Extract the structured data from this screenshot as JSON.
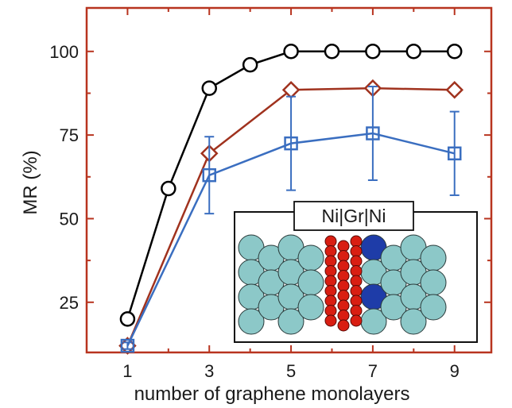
{
  "chart_data": {
    "type": "line",
    "xlabel": "number of graphene monolayers",
    "ylabel": "MR (%)",
    "xlim": [
      0.0,
      9.9
    ],
    "ylim": [
      10,
      113
    ],
    "x_ticks": [
      1,
      3,
      5,
      7,
      9
    ],
    "y_ticks": [
      25,
      50,
      75,
      100
    ],
    "grid": false,
    "series": [
      {
        "marker": "circle",
        "color": "#000000",
        "x": [
          1,
          2,
          3,
          4,
          5,
          6,
          7,
          8,
          9
        ],
        "y": [
          20,
          59,
          89,
          96,
          100,
          100,
          100,
          100,
          100
        ]
      },
      {
        "marker": "diamond",
        "color": "#a0321e",
        "x": [
          1,
          3,
          5,
          7,
          9
        ],
        "y": [
          12,
          69.5,
          88.5,
          89,
          88.5
        ]
      },
      {
        "marker": "square",
        "color": "#3a6ec0",
        "x": [
          1,
          3,
          5,
          7,
          9
        ],
        "y": [
          12,
          63,
          72.5,
          75.5,
          69.5
        ],
        "error": [
          1,
          11.5,
          14,
          14,
          12.5
        ]
      }
    ],
    "inset": {
      "title": "Ni|Gr|Ni",
      "atom_colors": {
        "nickel": "#8cc8c8",
        "carbon": "#d91e12",
        "interface": "#1e3ca8"
      }
    }
  }
}
